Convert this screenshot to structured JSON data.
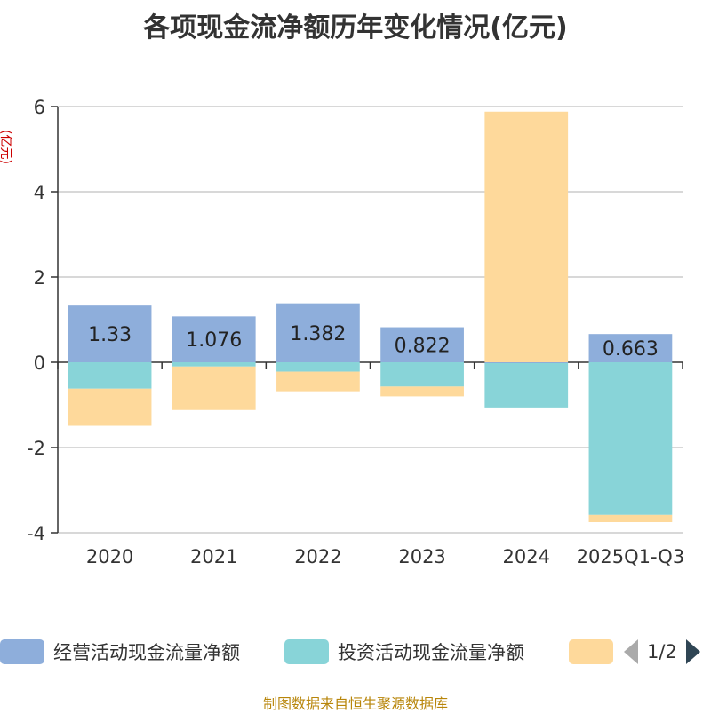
{
  "chart_data": {
    "type": "bar",
    "stacked": true,
    "title": "各项现金流净额历年变化情况(亿元)",
    "ylabel": "(亿元)",
    "ylim": [
      -4,
      6
    ],
    "yticks": [
      -4,
      -2,
      0,
      2,
      4,
      6
    ],
    "categories": [
      "2020",
      "2021",
      "2022",
      "2023",
      "2024",
      "2025Q1-Q3"
    ],
    "series": [
      {
        "name": "经营活动现金流量净额",
        "color": "#8eaedb",
        "values": [
          1.33,
          1.076,
          1.382,
          0.822,
          -0.02,
          0.663
        ],
        "labels_shown": true
      },
      {
        "name": "投资活动现金流量净额",
        "color": "#88d4d8",
        "values": [
          -0.62,
          -0.1,
          -0.22,
          -0.57,
          -1.04,
          -3.58
        ],
        "labels_shown": false
      },
      {
        "name": "",
        "color": "#fed99b",
        "values": [
          -0.87,
          -1.02,
          -0.46,
          -0.23,
          5.88,
          -0.17
        ],
        "labels_shown": false
      }
    ],
    "grid": true
  },
  "legend": {
    "page_text": "1/2"
  },
  "source": "制图数据来自恒生聚源数据库"
}
